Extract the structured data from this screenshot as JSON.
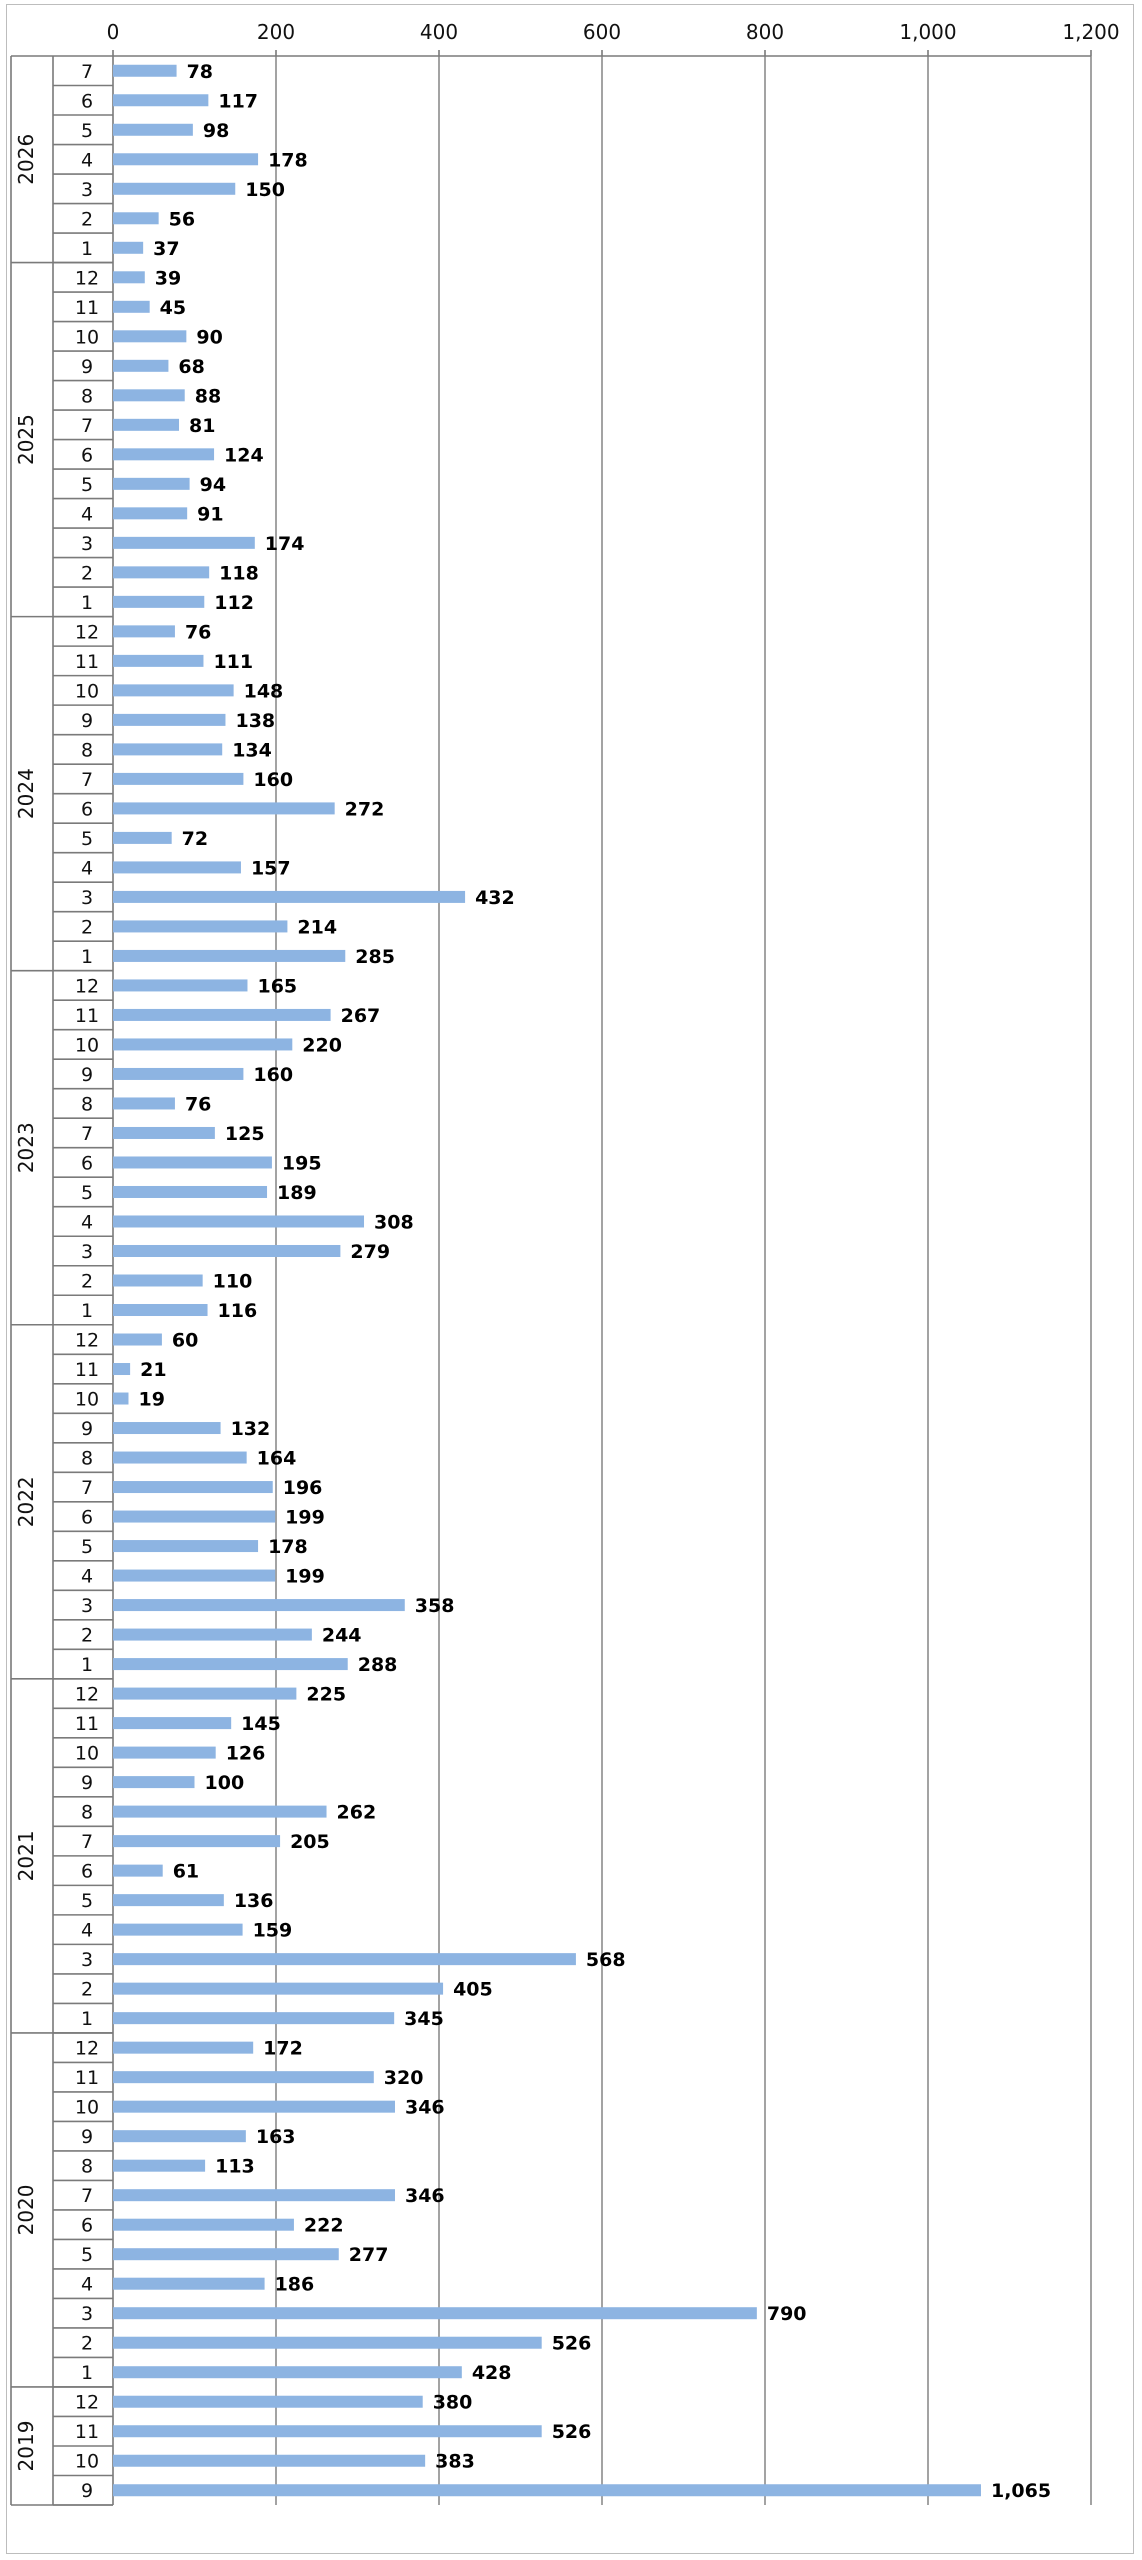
{
  "chart_data": {
    "type": "bar",
    "orientation": "horizontal",
    "title": "",
    "xlabel": "",
    "ylabel": "",
    "xlim": [
      0,
      1200
    ],
    "ticks": [
      "0",
      "200",
      "400",
      "600",
      "800",
      "1,000",
      "1,200"
    ],
    "tick_values": [
      0,
      200,
      400,
      600,
      800,
      1000,
      1200
    ],
    "grid": true,
    "legend": "none",
    "bar_color": "#8db4e2",
    "groups": [
      {
        "year": "2026",
        "months": [
          "7",
          "6",
          "5",
          "4",
          "3",
          "2",
          "1"
        ],
        "values": [
          78,
          117,
          98,
          178,
          150,
          56,
          37
        ]
      },
      {
        "year": "2025",
        "months": [
          "12",
          "11",
          "10",
          "9",
          "8",
          "7",
          "6",
          "5",
          "4",
          "3",
          "2",
          "1"
        ],
        "values": [
          39,
          45,
          90,
          68,
          88,
          81,
          124,
          94,
          91,
          174,
          118,
          112
        ]
      },
      {
        "year": "2024",
        "months": [
          "12",
          "11",
          "10",
          "9",
          "8",
          "7",
          "6",
          "5",
          "4",
          "3",
          "2",
          "1"
        ],
        "values": [
          76,
          111,
          148,
          138,
          134,
          160,
          272,
          72,
          157,
          432,
          214,
          285
        ]
      },
      {
        "year": "2023",
        "months": [
          "12",
          "11",
          "10",
          "9",
          "8",
          "7",
          "6",
          "5",
          "4",
          "3",
          "2",
          "1"
        ],
        "values": [
          165,
          267,
          220,
          160,
          76,
          125,
          195,
          189,
          308,
          279,
          110,
          116
        ]
      },
      {
        "year": "2022",
        "months": [
          "12",
          "11",
          "10",
          "9",
          "8",
          "7",
          "6",
          "5",
          "4",
          "3",
          "2",
          "1"
        ],
        "values": [
          60,
          21,
          19,
          132,
          164,
          196,
          199,
          178,
          199,
          358,
          244,
          288
        ]
      },
      {
        "year": "2021",
        "months": [
          "12",
          "11",
          "10",
          "9",
          "8",
          "7",
          "6",
          "5",
          "4",
          "3",
          "2",
          "1"
        ],
        "values": [
          225,
          145,
          126,
          100,
          262,
          205,
          61,
          136,
          159,
          568,
          405,
          345
        ]
      },
      {
        "year": "2020",
        "months": [
          "12",
          "11",
          "10",
          "9",
          "8",
          "7",
          "6",
          "5",
          "4",
          "3",
          "2",
          "1"
        ],
        "values": [
          172,
          320,
          346,
          163,
          113,
          346,
          222,
          277,
          186,
          790,
          526,
          428
        ]
      },
      {
        "year": "2019",
        "months": [
          "12",
          "11",
          "10",
          "9"
        ],
        "values": [
          380,
          526,
          383,
          1065
        ]
      }
    ]
  }
}
